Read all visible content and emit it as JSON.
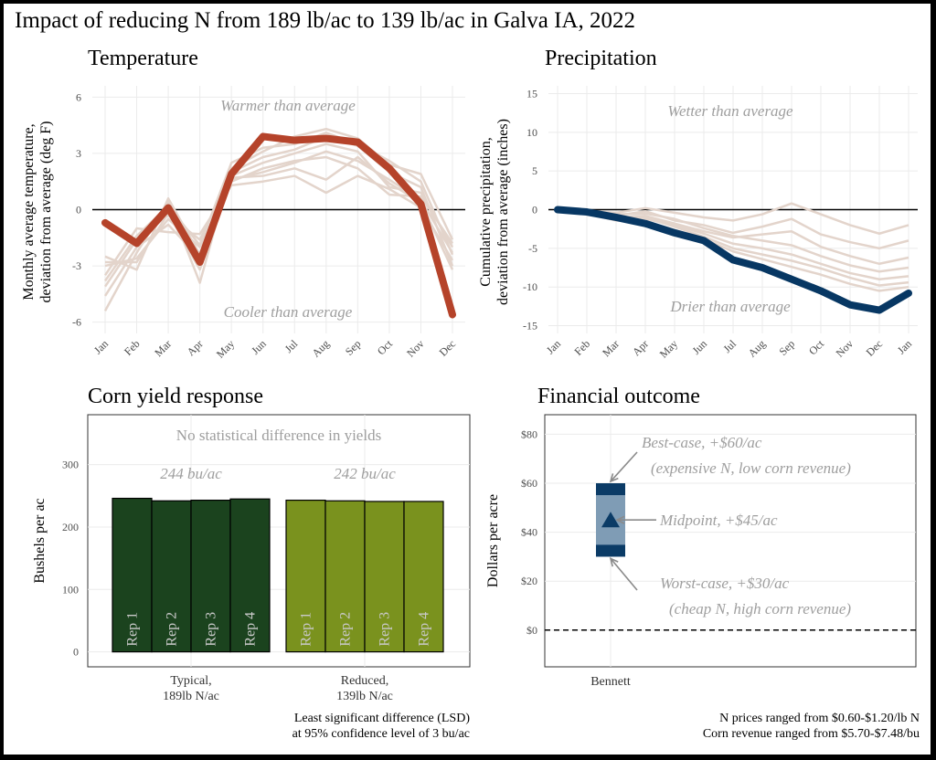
{
  "title": "Impact of reducing N from 189 lb/ac to 139 lb/ac in Galva IA, 2022",
  "colors": {
    "temp_main": "#b5432a",
    "historic": "#e3d4cb",
    "precip_main": "#073763",
    "typical": "#1b431e",
    "reduced": "#7a921e",
    "fin_box": "#7f9cb5",
    "fin_edge": "#0b3b66",
    "anno_gray": "#9e9e9e"
  },
  "chart_data": [
    {
      "type": "line",
      "title": "Temperature",
      "ylabel": "Monthly average temperature,\ndeviation from average (deg F)",
      "ylim": [
        -6.6,
        6.6
      ],
      "yticks": [
        6,
        3,
        0,
        -3,
        -6
      ],
      "x": [
        "Jan",
        "Feb",
        "Mar",
        "Apr",
        "May",
        "Jun",
        "Jul",
        "Aug",
        "Sep",
        "Oct",
        "Nov",
        "Dec"
      ],
      "annotations": [
        "Warmer than average",
        "Cooler than average"
      ],
      "series": [
        {
          "role": "2022",
          "values": [
            -0.7,
            -1.8,
            0.1,
            -2.8,
            1.9,
            3.9,
            3.7,
            3.8,
            3.6,
            2.2,
            0.3,
            -5.6
          ]
        }
      ],
      "historic_series": [
        [
          -3.0,
          -2.6,
          -0.5,
          -2.0,
          1.6,
          2.0,
          2.5,
          3.1,
          2.6,
          1.6,
          0.5,
          -2.3
        ],
        [
          -4.1,
          -1.6,
          -0.3,
          -1.6,
          1.8,
          2.5,
          3.0,
          3.5,
          3.1,
          1.2,
          0.9,
          -2.0
        ],
        [
          -5.4,
          -2.3,
          0.4,
          -3.9,
          2.2,
          3.1,
          3.9,
          4.3,
          3.8,
          2.4,
          1.9,
          -1.6
        ],
        [
          -3.5,
          -1.0,
          -1.2,
          -1.3,
          1.3,
          1.5,
          1.8,
          0.9,
          1.8,
          1.1,
          0.1,
          -2.7
        ],
        [
          -2.5,
          -3.2,
          0.6,
          -2.4,
          2.0,
          2.8,
          3.2,
          3.9,
          3.4,
          2.0,
          1.2,
          -3.0
        ],
        [
          -4.6,
          -2.0,
          -0.8,
          -2.6,
          1.5,
          2.2,
          2.6,
          2.8,
          2.2,
          0.8,
          0.7,
          -1.8
        ],
        [
          -3.8,
          -1.4,
          0.2,
          -1.9,
          2.5,
          3.3,
          3.5,
          4.1,
          3.5,
          2.6,
          1.5,
          -2.4
        ],
        [
          -2.8,
          -2.8,
          -0.2,
          -3.2,
          1.7,
          1.8,
          2.2,
          1.6,
          2.8,
          1.4,
          0.4,
          -3.2
        ]
      ]
    },
    {
      "type": "line",
      "title": "Precipitation",
      "ylabel": "Cumulative precipitation,\ndeviation from average (inches)",
      "ylim": [
        -16,
        16
      ],
      "yticks": [
        15,
        10,
        5,
        0,
        -5,
        -10,
        -15
      ],
      "x": [
        "Jan",
        "Feb",
        "Mar",
        "Apr",
        "May",
        "Jun",
        "Jul",
        "Aug",
        "Sep",
        "Oct",
        "Nov",
        "Dec",
        "Jan"
      ],
      "annotations": [
        "Wetter than average",
        "Drier than average"
      ],
      "series": [
        {
          "role": "2022",
          "values": [
            0,
            -0.3,
            -1.0,
            -1.8,
            -3.0,
            -4.0,
            -6.5,
            -7.5,
            -9.0,
            -10.5,
            -12.3,
            -13.0,
            -10.8
          ]
        }
      ],
      "historic_series": [
        [
          0,
          -0.2,
          -0.4,
          0.2,
          -0.4,
          -1.0,
          -1.4,
          -0.6,
          0.8,
          -0.6,
          -2.0,
          -3.1,
          -2.0
        ],
        [
          0,
          -0.3,
          -0.8,
          -0.2,
          -1.4,
          -2.0,
          -3.0,
          -2.2,
          -1.2,
          -3.2,
          -4.2,
          -5.0,
          -4.0
        ],
        [
          0,
          -0.4,
          -1.0,
          -0.8,
          -1.8,
          -2.8,
          -3.6,
          -3.2,
          -2.8,
          -4.8,
          -6.0,
          -7.0,
          -6.2
        ],
        [
          0,
          -0.2,
          -0.6,
          -0.5,
          -1.2,
          -2.4,
          -3.4,
          -4.0,
          -4.6,
          -6.0,
          -7.2,
          -8.0,
          -7.5
        ],
        [
          0,
          -0.4,
          -1.2,
          -1.2,
          -2.0,
          -3.1,
          -4.4,
          -5.0,
          -5.8,
          -7.0,
          -8.2,
          -9.0,
          -8.6
        ],
        [
          0,
          -0.3,
          -0.9,
          -1.0,
          -2.2,
          -3.5,
          -5.0,
          -5.8,
          -6.6,
          -7.6,
          -8.8,
          -9.8,
          -9.4
        ],
        [
          0,
          -0.5,
          -1.4,
          -1.5,
          -2.6,
          -3.8,
          -5.4,
          -6.4,
          -7.4,
          -8.4,
          -9.6,
          -10.5,
          -10.0
        ]
      ]
    },
    {
      "type": "bar",
      "title": "Corn yield response",
      "ylabel": "Bushels per ac",
      "ylim": [
        -24,
        380
      ],
      "yticks": [
        300,
        200,
        100,
        0
      ],
      "annotation": "No statistical difference in yields",
      "groups": [
        {
          "label": "Typical,\n189lb N/ac",
          "mean_label": "244 bu/ac",
          "reps": [
            "Rep 1",
            "Rep 2",
            "Rep 3",
            "Rep 4"
          ],
          "values": [
            246,
            242,
            243,
            245
          ]
        },
        {
          "label": "Reduced,\n139lb N/ac",
          "mean_label": "242 bu/ac",
          "reps": [
            "Rep 1",
            "Rep 2",
            "Rep 3",
            "Rep 4"
          ],
          "values": [
            243,
            242,
            241,
            241
          ]
        }
      ],
      "footnote": "Least significant difference (LSD)\nat 95% confidence level of 3 bu/ac"
    },
    {
      "type": "box",
      "title": "Financial outcome",
      "ylabel": "Dollars per acre",
      "ylim": [
        -15,
        88
      ],
      "yticks": [
        "$80",
        "$60",
        "$40",
        "$20",
        "$0"
      ],
      "ytick_values": [
        80,
        60,
        40,
        20,
        0
      ],
      "categories": [
        "Bennett"
      ],
      "low": 30,
      "mid": 45,
      "high": 60,
      "annotations": [
        {
          "text": "Best-case, +$60/ac\n(expensive N, low corn revenue)"
        },
        {
          "text": "Midpoint, +$45/ac"
        },
        {
          "text": "Worst-case, +$30/ac\n(cheap N,  high corn revenue)"
        }
      ],
      "footnote": "N prices ranged from $0.60-$1.20/lb N\nCorn revenue ranged from $5.70-$7.48/bu"
    }
  ]
}
